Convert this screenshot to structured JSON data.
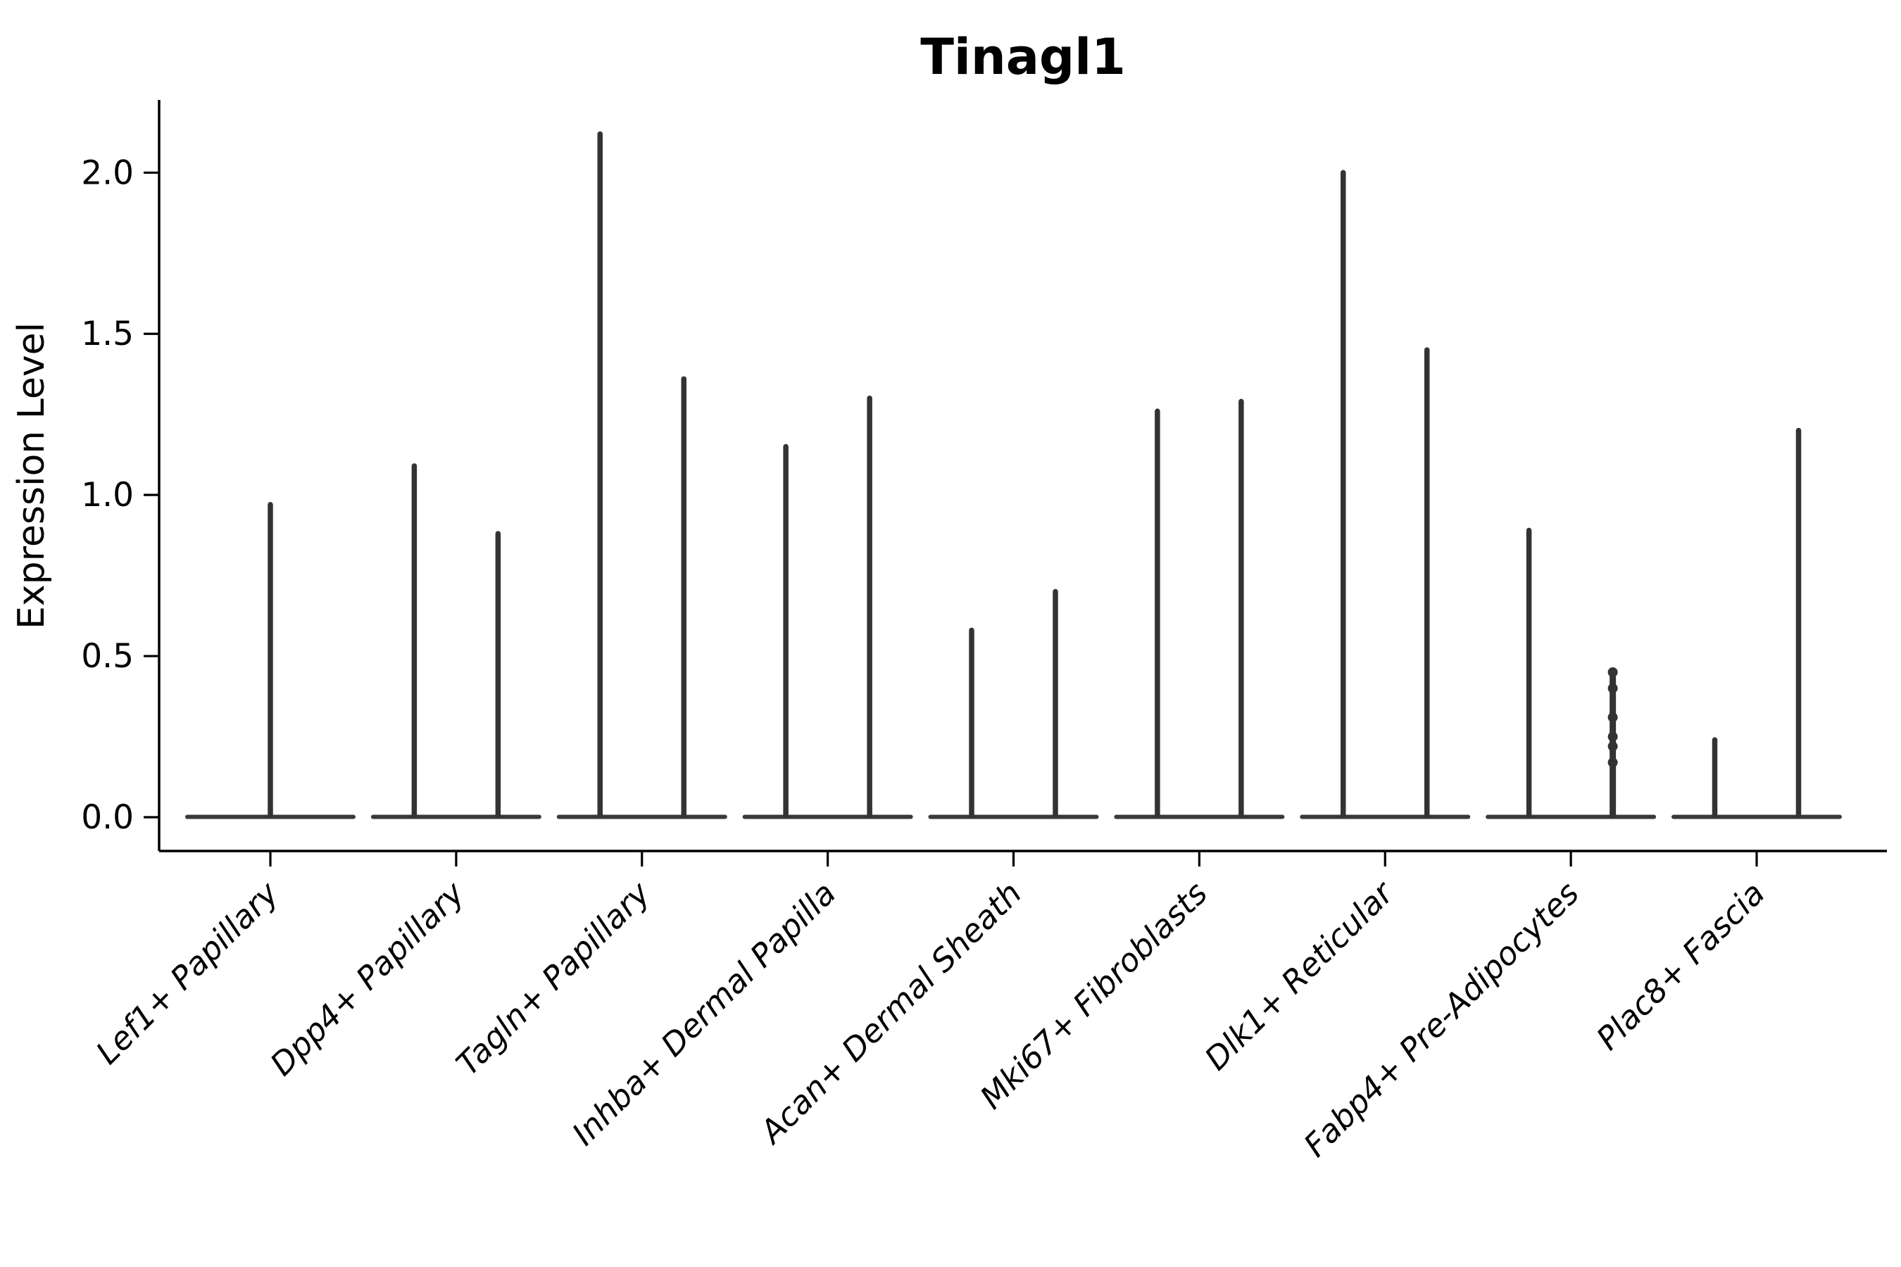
{
  "figure": {
    "title": "Tinagl1",
    "background_color": "#ffffff",
    "axis_color": "#000000",
    "violin_color": "#333333"
  },
  "chart_data": {
    "type": "violin",
    "title": "Tinagl1",
    "xlabel": "",
    "ylabel": "Expression Level",
    "ylim": [
      -0.11,
      2.23
    ],
    "yticks": [
      0.0,
      0.5,
      1.0,
      1.5,
      2.0
    ],
    "ytick_labels": [
      "0.0",
      "0.5",
      "1.0",
      "1.5",
      "2.0"
    ],
    "grid": false,
    "legend": null,
    "categories": [
      "Lef1+ Papillary",
      "Dpp4+ Papillary",
      "Tagln+ Papillary",
      "Inhba+ Dermal Papilla",
      "Acan+ Dermal Sheath",
      "Mki67+ Fibroblasts",
      "Dlk1+ Reticular",
      "Fabp4+ Pre-Adipocytes",
      "Plac8+ Fascia"
    ],
    "description": "Violin plot of Tinagl1 expression; each violin is a wide flat density mass at 0 with a thin spike rising to the maximum expression value. The first category has a single centered violin; all other categories contain two side-by-side violins.",
    "violins": [
      {
        "category": "Lef1+ Papillary",
        "maxima": [
          0.97
        ]
      },
      {
        "category": "Dpp4+ Papillary",
        "maxima": [
          1.09,
          0.88
        ]
      },
      {
        "category": "Tagln+ Papillary",
        "maxima": [
          2.12,
          1.36
        ]
      },
      {
        "category": "Inhba+ Dermal Papilla",
        "maxima": [
          1.15,
          1.3
        ]
      },
      {
        "category": "Acan+ Dermal Sheath",
        "maxima": [
          0.58,
          0.7
        ]
      },
      {
        "category": "Mki67+ Fibroblasts",
        "maxima": [
          1.26,
          1.29
        ]
      },
      {
        "category": "Dlk1+ Reticular",
        "maxima": [
          2.0,
          1.45
        ]
      },
      {
        "category": "Fabp4+ Pre-Adipocytes",
        "maxima": [
          0.89,
          0.45
        ],
        "points": [
          0.45,
          0.4,
          0.31,
          0.25,
          0.22,
          0.17
        ]
      },
      {
        "category": "Plac8+ Fascia",
        "maxima": [
          0.24,
          1.2
        ]
      }
    ]
  }
}
